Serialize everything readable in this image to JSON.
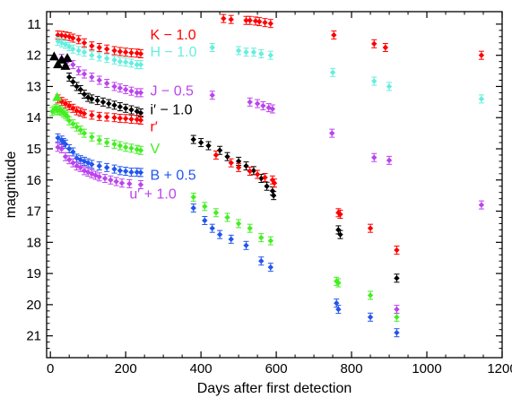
{
  "chart_data": {
    "type": "scatter",
    "title": "",
    "xlabel": "Days after first detection",
    "ylabel": "magnitude",
    "xlim": [
      -10,
      1200
    ],
    "ylim": [
      21.7,
      10.6
    ],
    "y_inverted": true,
    "x_ticks": [
      0,
      200,
      400,
      600,
      800,
      1000,
      1200
    ],
    "y_ticks": [
      11,
      12,
      13,
      14,
      15,
      16,
      17,
      18,
      19,
      20,
      21
    ],
    "grid": false,
    "legend": "inline labels right of early-time data",
    "series": [
      {
        "name": "K − 1.0",
        "color": "#ff0000",
        "marker": "diamond",
        "points": [
          [
            20,
            11.35
          ],
          [
            30,
            11.36
          ],
          [
            40,
            11.38
          ],
          [
            50,
            11.4
          ],
          [
            60,
            11.45
          ],
          [
            75,
            11.5
          ],
          [
            90,
            11.6
          ],
          [
            110,
            11.7
          ],
          [
            130,
            11.75
          ],
          [
            150,
            11.8
          ],
          [
            170,
            11.85
          ],
          [
            185,
            11.88
          ],
          [
            200,
            11.9
          ],
          [
            215,
            11.92
          ],
          [
            230,
            11.93
          ],
          [
            240,
            11.95
          ],
          [
            460,
            10.82
          ],
          [
            480,
            10.85
          ],
          [
            520,
            10.88
          ],
          [
            530,
            10.88
          ],
          [
            545,
            10.9
          ],
          [
            555,
            10.92
          ],
          [
            570,
            10.95
          ],
          [
            585,
            10.98
          ],
          [
            753,
            11.35
          ],
          [
            860,
            11.63
          ],
          [
            890,
            11.75
          ],
          [
            1145,
            12.0
          ]
        ]
      },
      {
        "name": "H − 1.0",
        "color": "#66eedd",
        "marker": "diamond",
        "points": [
          [
            20,
            11.55
          ],
          [
            30,
            11.6
          ],
          [
            40,
            11.65
          ],
          [
            50,
            11.72
          ],
          [
            60,
            11.8
          ],
          [
            75,
            11.85
          ],
          [
            90,
            11.9
          ],
          [
            110,
            12.0
          ],
          [
            130,
            12.05
          ],
          [
            150,
            12.1
          ],
          [
            170,
            12.15
          ],
          [
            185,
            12.2
          ],
          [
            200,
            12.22
          ],
          [
            215,
            12.25
          ],
          [
            230,
            12.3
          ],
          [
            240,
            12.3
          ],
          [
            430,
            11.75
          ],
          [
            500,
            11.85
          ],
          [
            520,
            11.9
          ],
          [
            540,
            11.9
          ],
          [
            560,
            11.95
          ],
          [
            585,
            12.0
          ],
          [
            750,
            12.55
          ],
          [
            860,
            12.83
          ],
          [
            900,
            13.0
          ],
          [
            1145,
            13.4
          ]
        ]
      },
      {
        "name": "J − 0.5",
        "color": "#bb44ee",
        "marker": "diamond",
        "points": [
          [
            30,
            12.1
          ],
          [
            45,
            12.2
          ],
          [
            60,
            12.3
          ],
          [
            75,
            12.5
          ],
          [
            90,
            12.6
          ],
          [
            110,
            12.7
          ],
          [
            130,
            12.8
          ],
          [
            150,
            12.9
          ],
          [
            170,
            13.0
          ],
          [
            185,
            13.05
          ],
          [
            200,
            13.1
          ],
          [
            215,
            13.15
          ],
          [
            230,
            13.2
          ],
          [
            240,
            13.2
          ],
          [
            430,
            13.28
          ],
          [
            530,
            13.5
          ],
          [
            550,
            13.55
          ],
          [
            565,
            13.62
          ],
          [
            580,
            13.68
          ],
          [
            590,
            13.72
          ],
          [
            748,
            14.5
          ],
          [
            860,
            15.28
          ],
          [
            900,
            15.37
          ],
          [
            1145,
            16.8
          ]
        ]
      },
      {
        "name": "i′ − 1.0",
        "color": "#000000",
        "marker": "diamond",
        "triangle_points": [
          [
            10,
            12.05
          ],
          [
            20,
            12.3
          ],
          [
            30,
            12.15
          ],
          [
            40,
            12.35
          ],
          [
            45,
            12.1
          ]
        ],
        "points": [
          [
            50,
            12.7
          ],
          [
            60,
            12.85
          ],
          [
            70,
            13.0
          ],
          [
            80,
            13.1
          ],
          [
            90,
            13.25
          ],
          [
            100,
            13.35
          ],
          [
            110,
            13.4
          ],
          [
            125,
            13.45
          ],
          [
            140,
            13.5
          ],
          [
            155,
            13.55
          ],
          [
            170,
            13.6
          ],
          [
            185,
            13.65
          ],
          [
            200,
            13.7
          ],
          [
            215,
            13.75
          ],
          [
            230,
            13.8
          ],
          [
            240,
            13.85
          ],
          [
            380,
            14.7
          ],
          [
            400,
            14.8
          ],
          [
            420,
            14.9
          ],
          [
            450,
            15.05
          ],
          [
            470,
            15.25
          ],
          [
            500,
            15.4
          ],
          [
            520,
            15.55
          ],
          [
            540,
            15.7
          ],
          [
            560,
            15.95
          ],
          [
            575,
            16.2
          ],
          [
            590,
            16.35
          ],
          [
            593,
            16.5
          ],
          [
            765,
            17.6
          ],
          [
            770,
            17.75
          ],
          [
            920,
            19.15
          ]
        ]
      },
      {
        "name": "r′",
        "color": "#ff0000",
        "marker": "diamond",
        "points": [
          [
            20,
            13.4
          ],
          [
            30,
            13.48
          ],
          [
            40,
            13.55
          ],
          [
            50,
            13.62
          ],
          [
            60,
            13.7
          ],
          [
            70,
            13.78
          ],
          [
            80,
            13.82
          ],
          [
            90,
            13.87
          ],
          [
            110,
            13.92
          ],
          [
            130,
            13.96
          ],
          [
            150,
            13.98
          ],
          [
            170,
            14.0
          ],
          [
            185,
            14.02
          ],
          [
            200,
            14.03
          ],
          [
            215,
            14.05
          ],
          [
            230,
            14.06
          ],
          [
            240,
            14.08
          ],
          [
            440,
            15.2
          ],
          [
            480,
            15.45
          ],
          [
            500,
            15.6
          ],
          [
            530,
            15.72
          ],
          [
            550,
            15.82
          ],
          [
            570,
            15.92
          ],
          [
            590,
            16.0
          ],
          [
            595,
            16.1
          ],
          [
            765,
            17.05
          ],
          [
            770,
            17.1
          ],
          [
            850,
            17.55
          ],
          [
            920,
            18.25
          ]
        ]
      },
      {
        "name": "V",
        "color": "#44ee22",
        "marker": "diamond",
        "triangle_points": [
          [
            18,
            13.35
          ]
        ],
        "points": [
          [
            5,
            13.8
          ],
          [
            10,
            13.75
          ],
          [
            15,
            13.7
          ],
          [
            20,
            13.78
          ],
          [
            25,
            13.75
          ],
          [
            30,
            13.8
          ],
          [
            35,
            13.85
          ],
          [
            40,
            13.9
          ],
          [
            45,
            13.95
          ],
          [
            50,
            14.1
          ],
          [
            60,
            14.2
          ],
          [
            70,
            14.3
          ],
          [
            80,
            14.4
          ],
          [
            90,
            14.5
          ],
          [
            110,
            14.62
          ],
          [
            130,
            14.72
          ],
          [
            150,
            14.8
          ],
          [
            170,
            14.85
          ],
          [
            185,
            14.9
          ],
          [
            200,
            14.95
          ],
          [
            215,
            14.98
          ],
          [
            230,
            15.02
          ],
          [
            240,
            15.05
          ],
          [
            380,
            16.55
          ],
          [
            410,
            16.85
          ],
          [
            440,
            17.05
          ],
          [
            470,
            17.2
          ],
          [
            500,
            17.4
          ],
          [
            530,
            17.55
          ],
          [
            560,
            17.85
          ],
          [
            585,
            17.95
          ],
          [
            760,
            19.25
          ],
          [
            765,
            19.3
          ],
          [
            850,
            19.7
          ],
          [
            920,
            20.4
          ]
        ]
      },
      {
        "name": "B + 0.5",
        "color": "#2255ee",
        "marker": "diamond",
        "points": [
          [
            20,
            14.65
          ],
          [
            30,
            14.72
          ],
          [
            35,
            14.8
          ],
          [
            40,
            14.85
          ],
          [
            50,
            15.0
          ],
          [
            60,
            15.1
          ],
          [
            70,
            15.3
          ],
          [
            80,
            15.35
          ],
          [
            90,
            15.4
          ],
          [
            100,
            15.45
          ],
          [
            110,
            15.5
          ],
          [
            130,
            15.55
          ],
          [
            150,
            15.6
          ],
          [
            170,
            15.65
          ],
          [
            185,
            15.7
          ],
          [
            200,
            15.72
          ],
          [
            215,
            15.75
          ],
          [
            230,
            15.75
          ],
          [
            240,
            15.76
          ],
          [
            380,
            16.9
          ],
          [
            410,
            17.3
          ],
          [
            430,
            17.55
          ],
          [
            450,
            17.75
          ],
          [
            480,
            17.9
          ],
          [
            520,
            18.1
          ],
          [
            560,
            18.6
          ],
          [
            585,
            18.8
          ],
          [
            760,
            19.95
          ],
          [
            765,
            20.15
          ],
          [
            850,
            20.4
          ],
          [
            920,
            20.9
          ]
        ]
      },
      {
        "name": "u′ + 1.0",
        "color": "#bb44ee",
        "marker": "diamond",
        "points": [
          [
            20,
            14.95
          ],
          [
            30,
            15.0
          ],
          [
            40,
            15.25
          ],
          [
            50,
            15.35
          ],
          [
            60,
            15.45
          ],
          [
            70,
            15.55
          ],
          [
            80,
            15.6
          ],
          [
            90,
            15.7
          ],
          [
            100,
            15.75
          ],
          [
            110,
            15.8
          ],
          [
            120,
            15.85
          ],
          [
            130,
            15.9
          ],
          [
            145,
            15.95
          ],
          [
            160,
            16.0
          ],
          [
            175,
            16.05
          ],
          [
            190,
            16.1
          ],
          [
            210,
            16.12
          ],
          [
            240,
            16.15
          ],
          [
            920,
            20.15
          ]
        ]
      }
    ],
    "labels": [
      {
        "text": "K − 1.0",
        "color": "#ff0000",
        "x": 265,
        "y": 11.35
      },
      {
        "text": "H − 1.0",
        "color": "#66eedd",
        "x": 265,
        "y": 11.9
      },
      {
        "text": "J − 0.5",
        "color": "#bb44ee",
        "x": 265,
        "y": 13.15
      },
      {
        "text": "i′ − 1.0",
        "color": "#000000",
        "x": 265,
        "y": 13.75
      },
      {
        "text": "r′",
        "color": "#ff0000",
        "x": 265,
        "y": 14.3
      },
      {
        "text": "V",
        "color": "#44ee22",
        "x": 265,
        "y": 15.0
      },
      {
        "text": "B + 0.5",
        "color": "#2255ee",
        "x": 265,
        "y": 15.85
      },
      {
        "text": "u′ + 1.0",
        "color": "#bb44ee",
        "x": 210,
        "y": 16.45
      }
    ]
  }
}
